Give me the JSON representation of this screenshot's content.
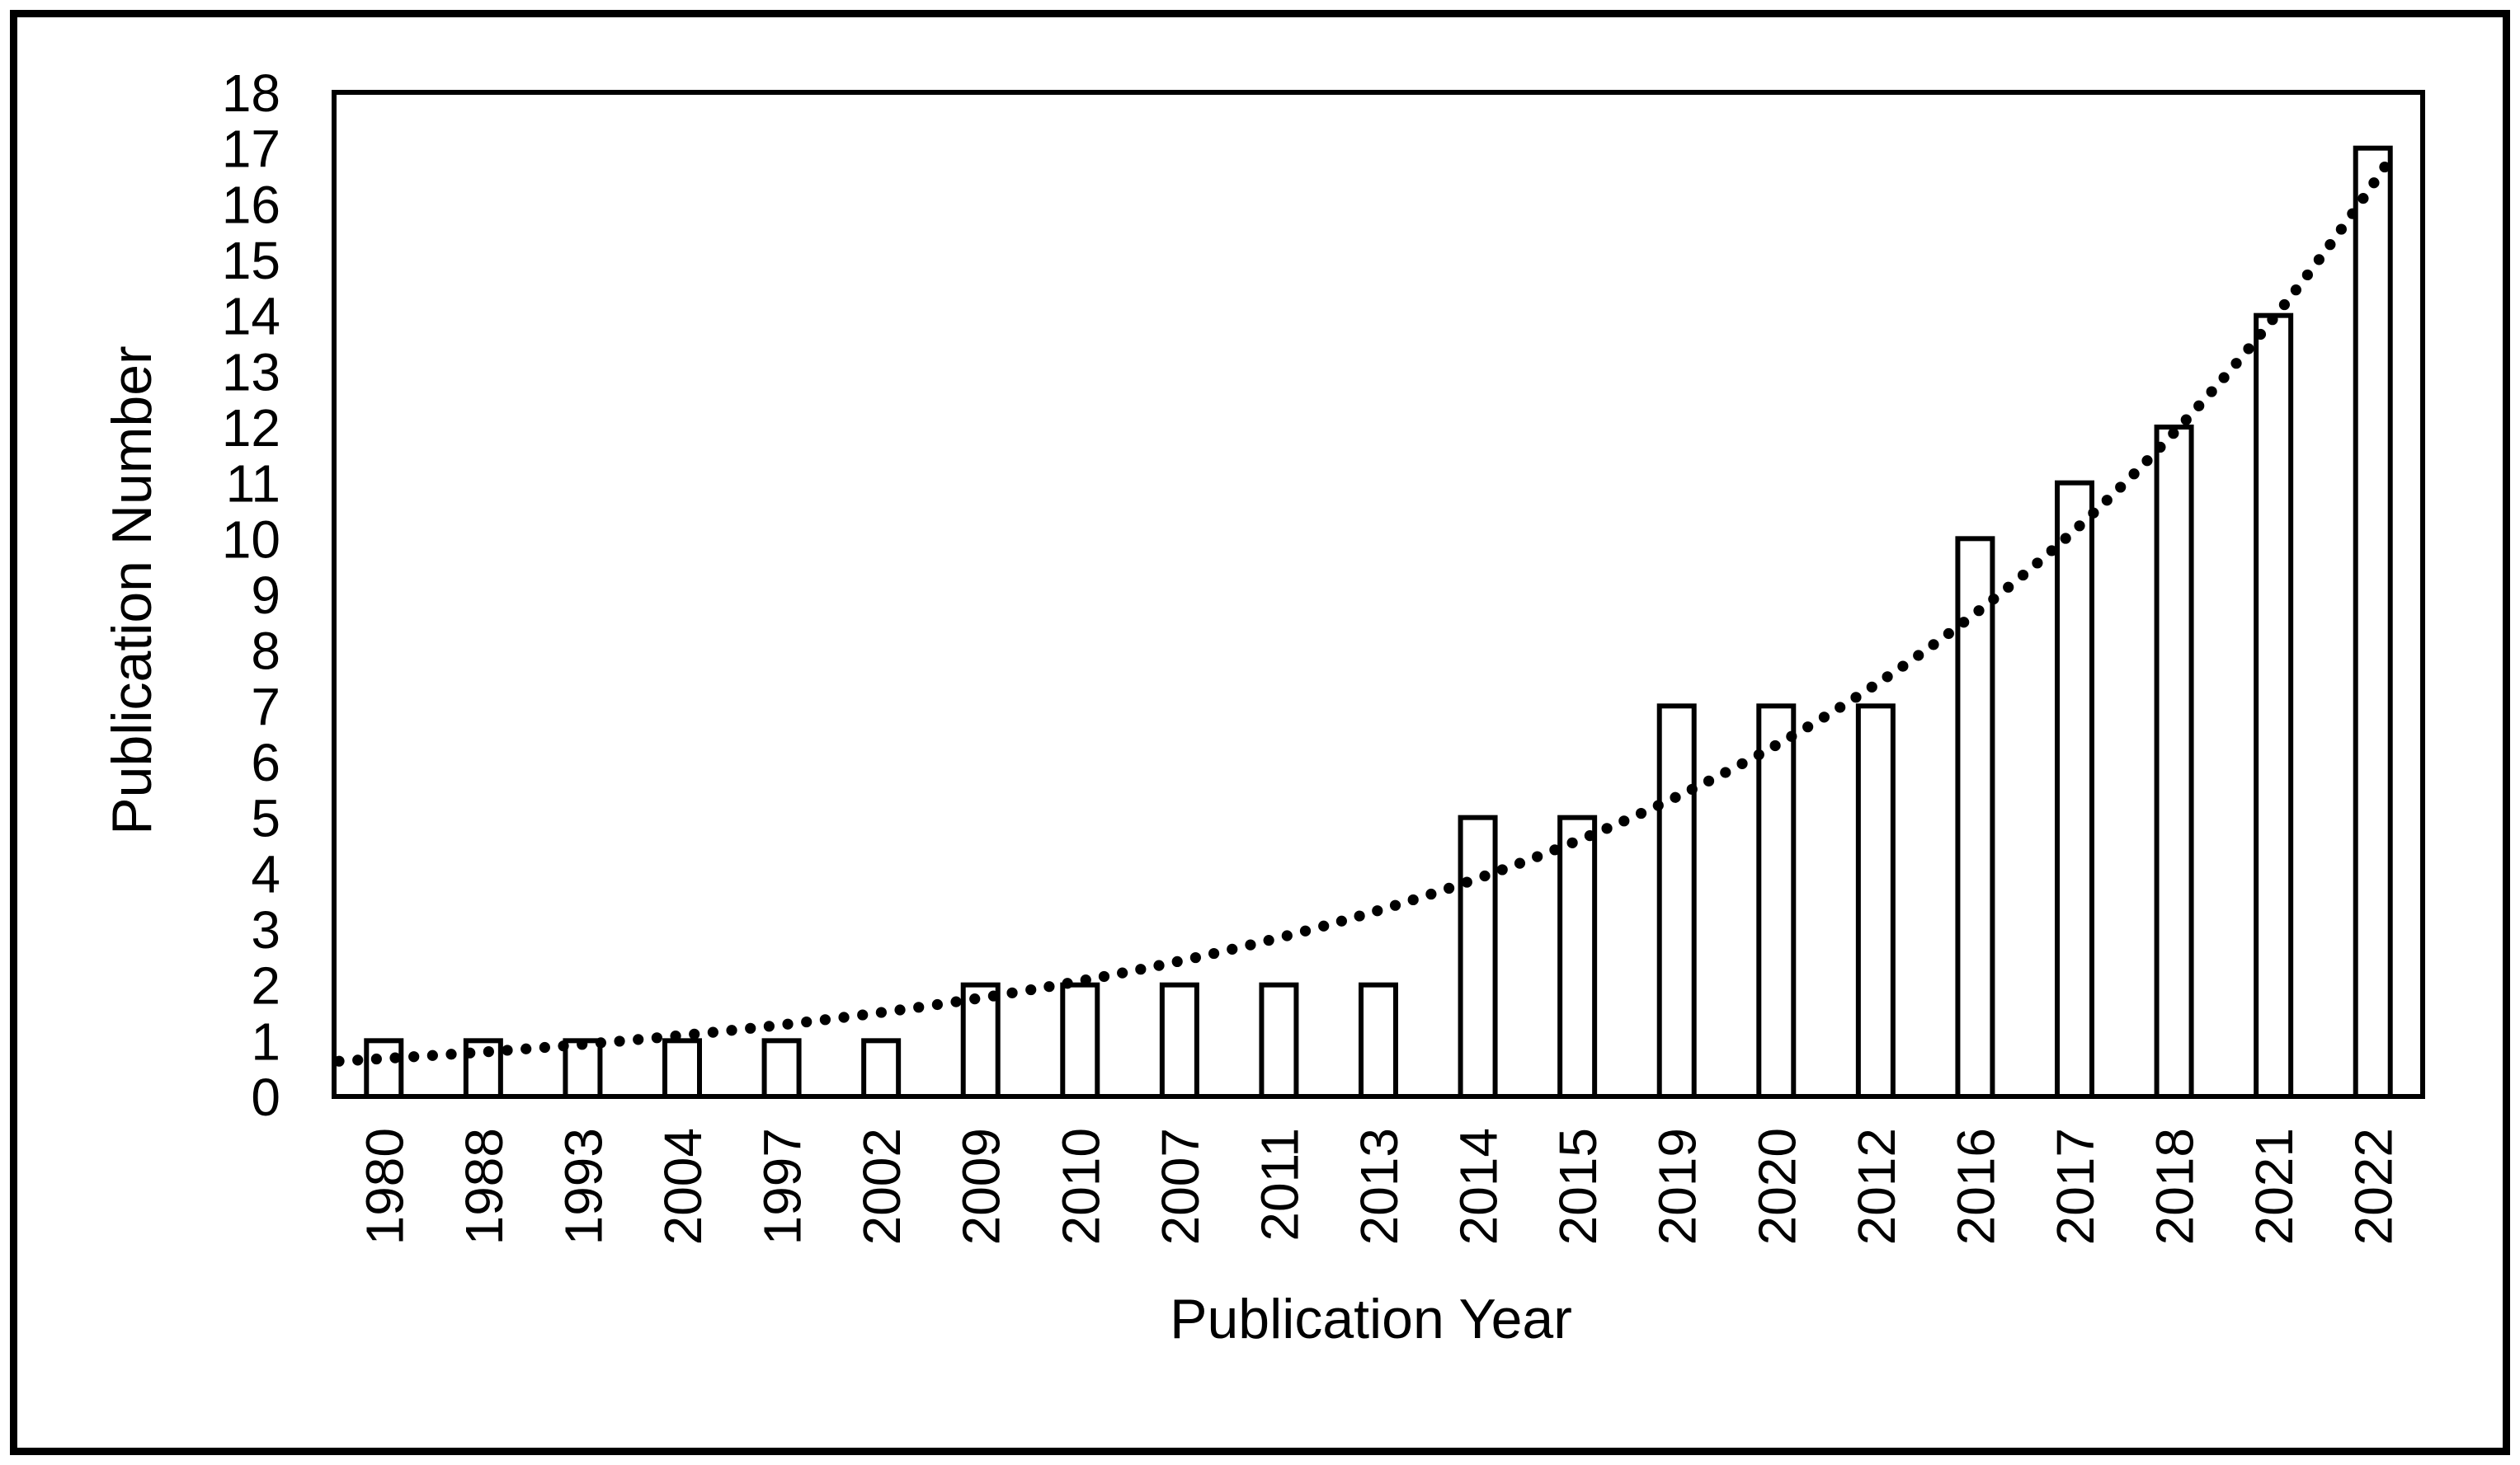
{
  "figure": {
    "background": "#FFFFFF",
    "border_color": "#000000"
  },
  "chart_data": {
    "type": "bar",
    "title": "",
    "xlabel": "Publication Year",
    "ylabel": "Publication Number",
    "categories": [
      "1980",
      "1988",
      "1993",
      "2004",
      "1997",
      "2002",
      "2009",
      "2010",
      "2007",
      "2011",
      "2013",
      "2014",
      "2015",
      "2019",
      "2020",
      "2012",
      "2016",
      "2017",
      "2018",
      "2021",
      "2022"
    ],
    "values": [
      1,
      1,
      1,
      1,
      1,
      1,
      2,
      2,
      2,
      2,
      2,
      5,
      5,
      7,
      7,
      7,
      10,
      11,
      12,
      14,
      17
    ],
    "ylim": [
      0,
      18
    ],
    "ytick_step": 1,
    "grid": "off",
    "legend": "none",
    "bar_fill": "#FFFFFF",
    "bar_stroke": "#000000",
    "axis_color": "#000000",
    "trendline": {
      "type": "exponential",
      "style": "dotted",
      "a": 0.68,
      "b": 0.159,
      "start_index": -0.45,
      "end_index": 20.15,
      "color": "#000000"
    }
  }
}
